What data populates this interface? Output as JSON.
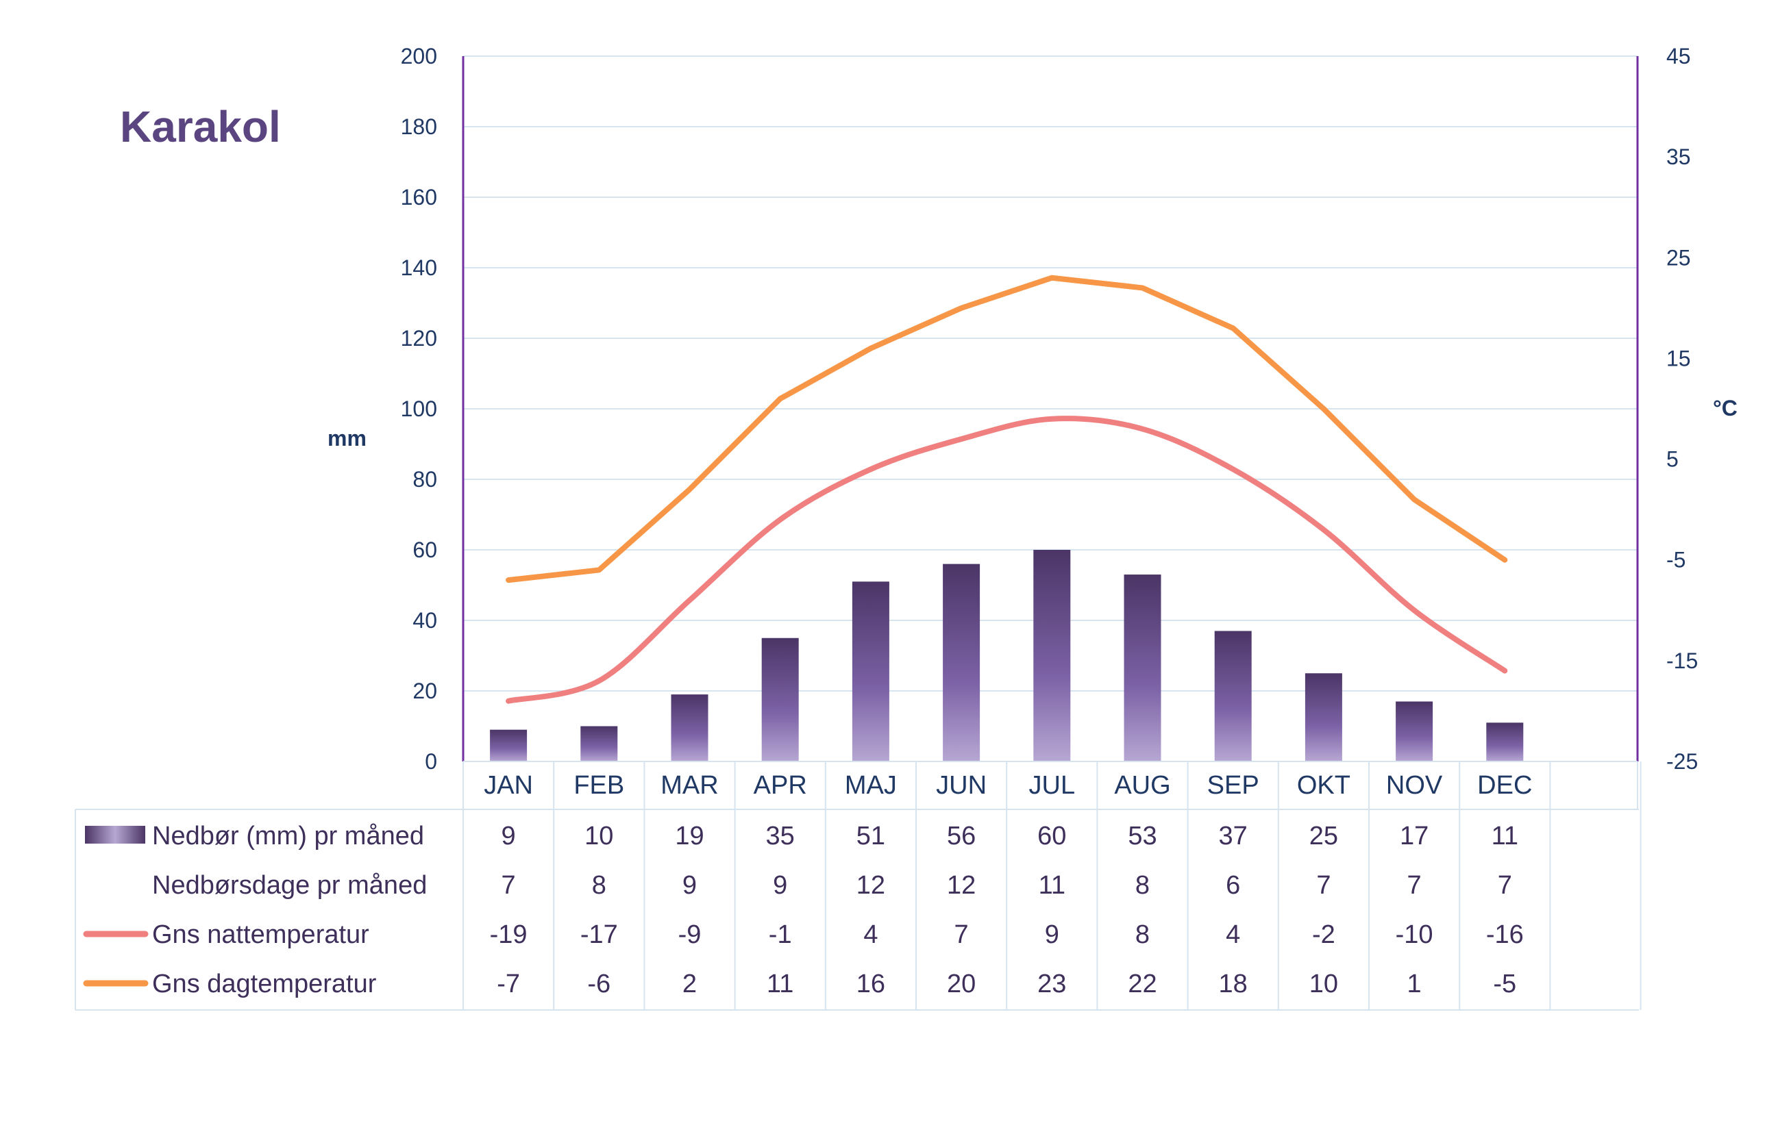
{
  "chart_data": {
    "type": "bar+line",
    "title": "Karakol",
    "categories": [
      "JAN",
      "FEB",
      "MAR",
      "APR",
      "MAJ",
      "JUN",
      "JUL",
      "AUG",
      "SEP",
      "OKT",
      "NOV",
      "DEC"
    ],
    "left_axis": {
      "unit": "mm",
      "ylim": [
        0,
        200
      ],
      "ticks": [
        0,
        20,
        40,
        60,
        80,
        100,
        120,
        140,
        160,
        180,
        200
      ]
    },
    "right_axis": {
      "unit": "°C",
      "ylim": [
        -25,
        45
      ],
      "ticks": [
        -25,
        -15,
        -5,
        5,
        15,
        25,
        35,
        45
      ]
    },
    "grid": true,
    "series": [
      {
        "name": "Nedbør (mm) pr måned",
        "type": "bar",
        "axis": "left",
        "color": "#5b4580",
        "values": [
          9,
          10,
          19,
          35,
          51,
          56,
          60,
          53,
          37,
          25,
          17,
          11
        ]
      },
      {
        "name": "Nedbørsdage pr måned",
        "type": "table-only",
        "values": [
          7,
          8,
          9,
          9,
          12,
          12,
          11,
          8,
          6,
          7,
          7,
          7
        ]
      },
      {
        "name": "Gns nattemperatur",
        "type": "line",
        "axis": "right",
        "color": "#f08080",
        "values": [
          -19,
          -17,
          -9,
          -1,
          4,
          7,
          9,
          8,
          4,
          -2,
          -10,
          -16
        ]
      },
      {
        "name": "Gns dagtemperatur",
        "type": "line",
        "axis": "right",
        "color": "#f79646",
        "values": [
          -7,
          -6,
          2,
          11,
          16,
          20,
          23,
          22,
          18,
          10,
          1,
          -5
        ]
      }
    ]
  },
  "colors": {
    "axis_text": "#1f3864",
    "axis_line": "#7030a0",
    "grid": "#d6e4f0",
    "title": "#5b4580"
  }
}
